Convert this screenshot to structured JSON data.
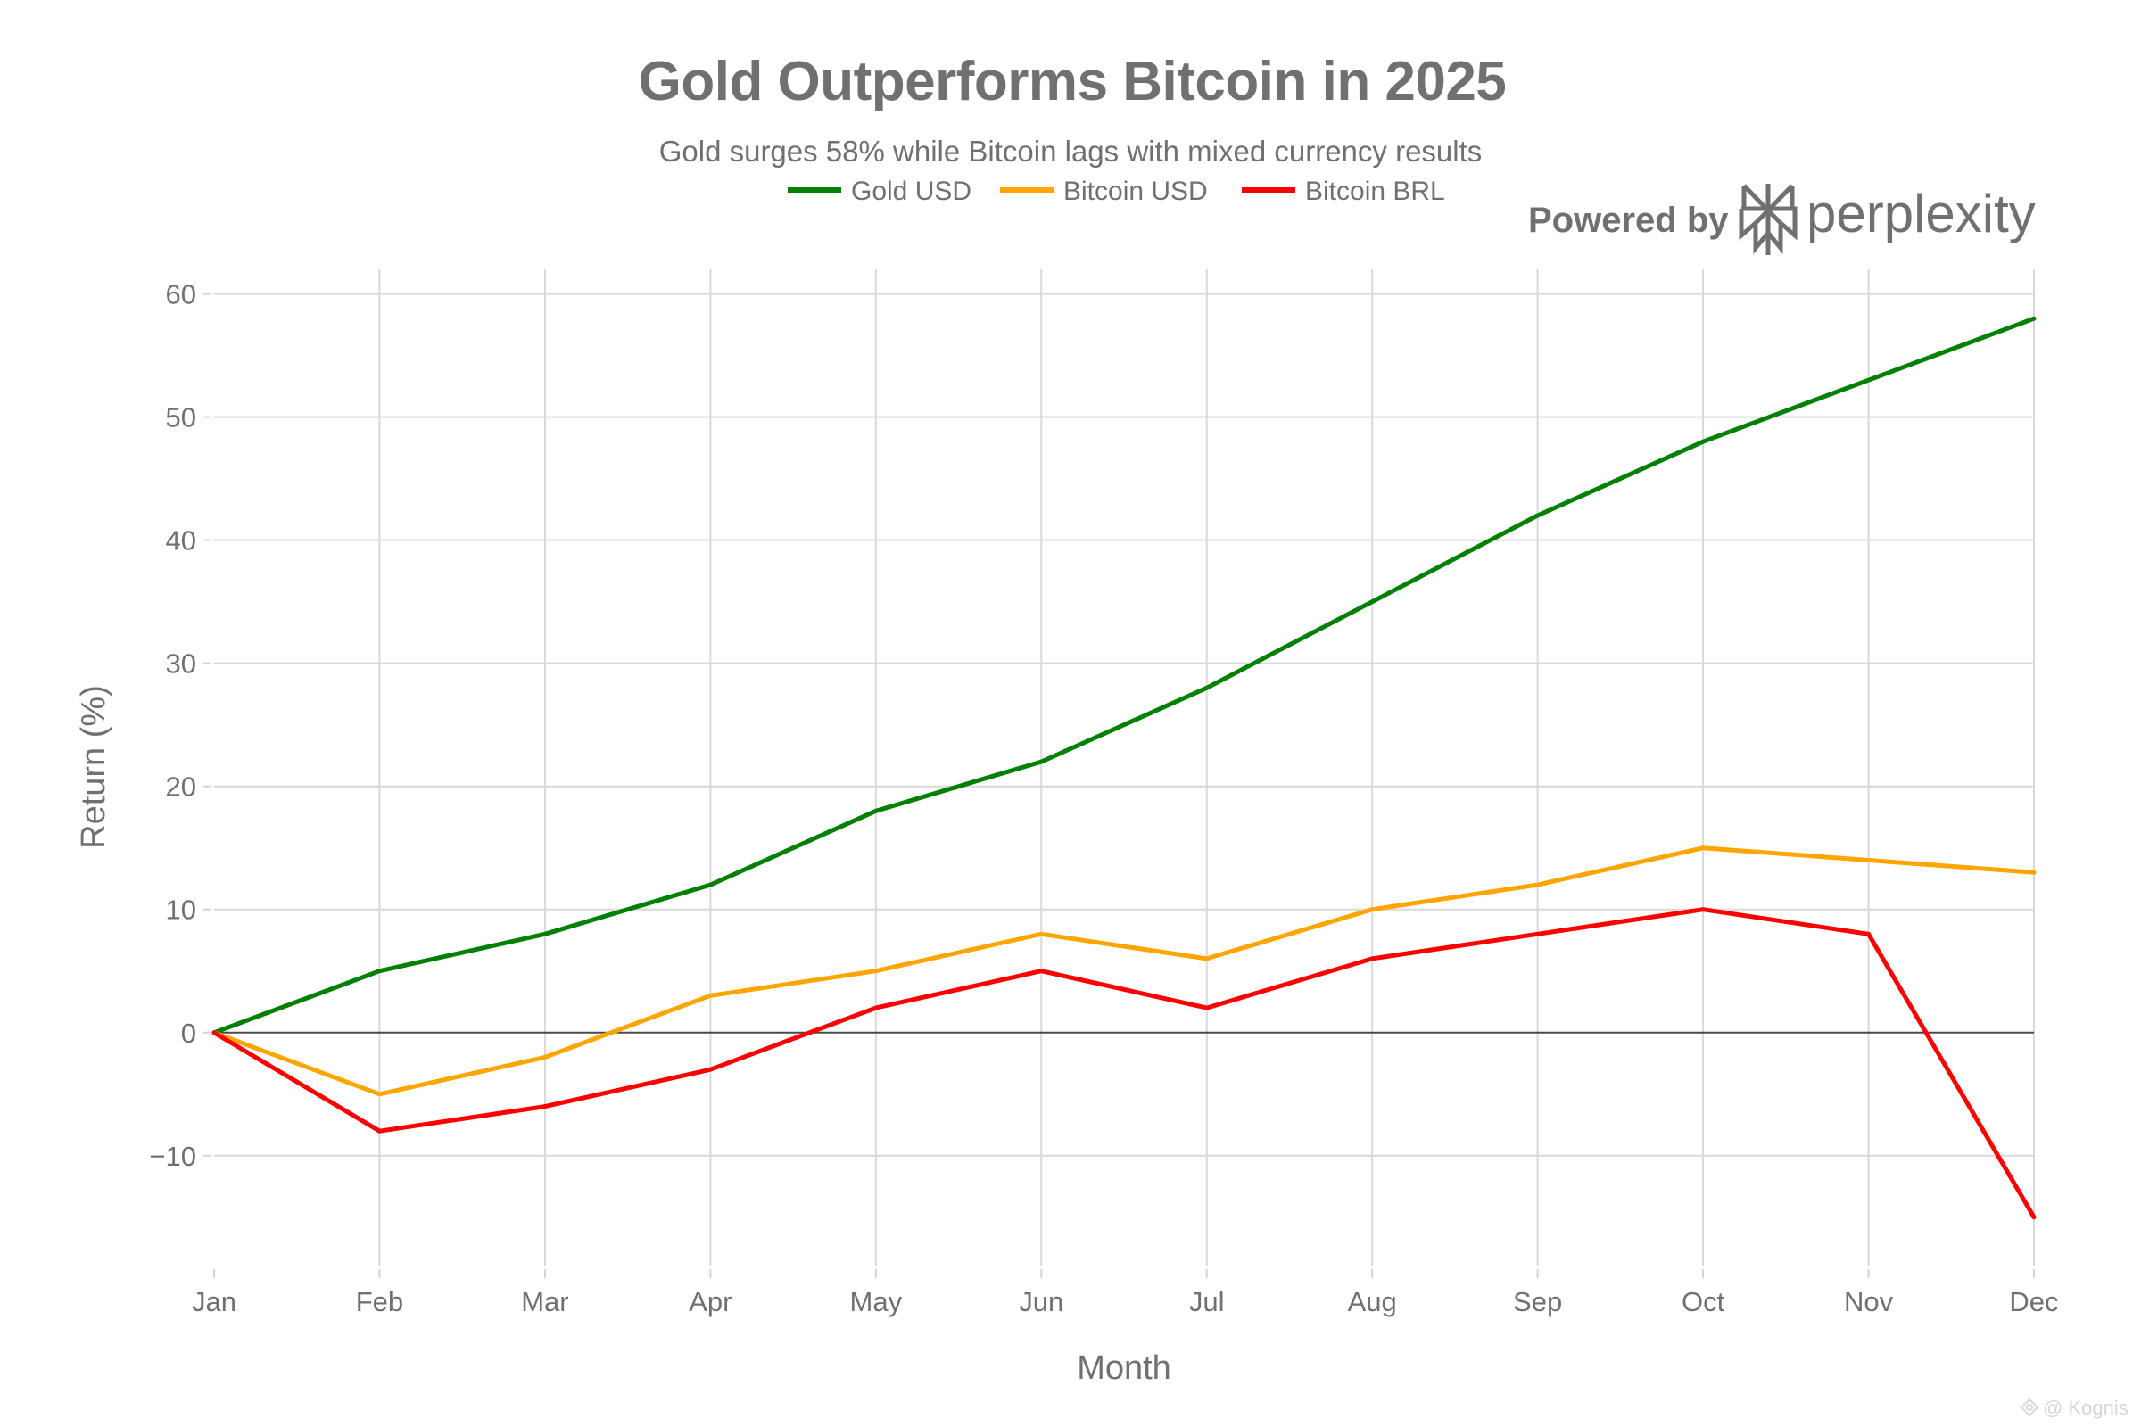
{
  "header": {
    "title": "Gold Outperforms Bitcoin in 2025",
    "subtitle": "Gold surges 58% while Bitcoin lags with mixed currency results"
  },
  "branding": {
    "powered_by": "Powered by",
    "brand_name": "perplexity",
    "logo_icon": "perplexity-logo-icon"
  },
  "watermark": {
    "icon": "kognis-logo-icon",
    "text": "@ Kognis"
  },
  "chart_data": {
    "type": "line",
    "title": "Gold Outperforms Bitcoin in 2025",
    "subtitle": "Gold surges 58% while Bitcoin lags with mixed currency results",
    "xlabel": "Month",
    "ylabel": "Return (%)",
    "categories": [
      "Jan",
      "Feb",
      "Mar",
      "Apr",
      "May",
      "Jun",
      "Jul",
      "Aug",
      "Sep",
      "Oct",
      "Nov",
      "Dec"
    ],
    "ylim": [
      -19,
      62
    ],
    "yticks": [
      -10,
      0,
      10,
      20,
      30,
      40,
      50,
      60
    ],
    "ytick_labels": [
      "−10",
      "0",
      "10",
      "20",
      "30",
      "40",
      "50",
      "60"
    ],
    "grid": true,
    "zero_line": true,
    "legend_position": "top-center",
    "series": [
      {
        "name": "Gold USD",
        "color": "#008000",
        "values": [
          0,
          5,
          8,
          12,
          18,
          22,
          28,
          35,
          42,
          48,
          53,
          58
        ]
      },
      {
        "name": "Bitcoin USD",
        "color": "#FFA500",
        "values": [
          0,
          -5,
          -2,
          3,
          5,
          8,
          6,
          10,
          12,
          15,
          14,
          13
        ]
      },
      {
        "name": "Bitcoin BRL",
        "color": "#FF0000",
        "values": [
          0,
          -8,
          -6,
          -3,
          2,
          5,
          2,
          6,
          8,
          10,
          8,
          -15
        ]
      }
    ]
  }
}
